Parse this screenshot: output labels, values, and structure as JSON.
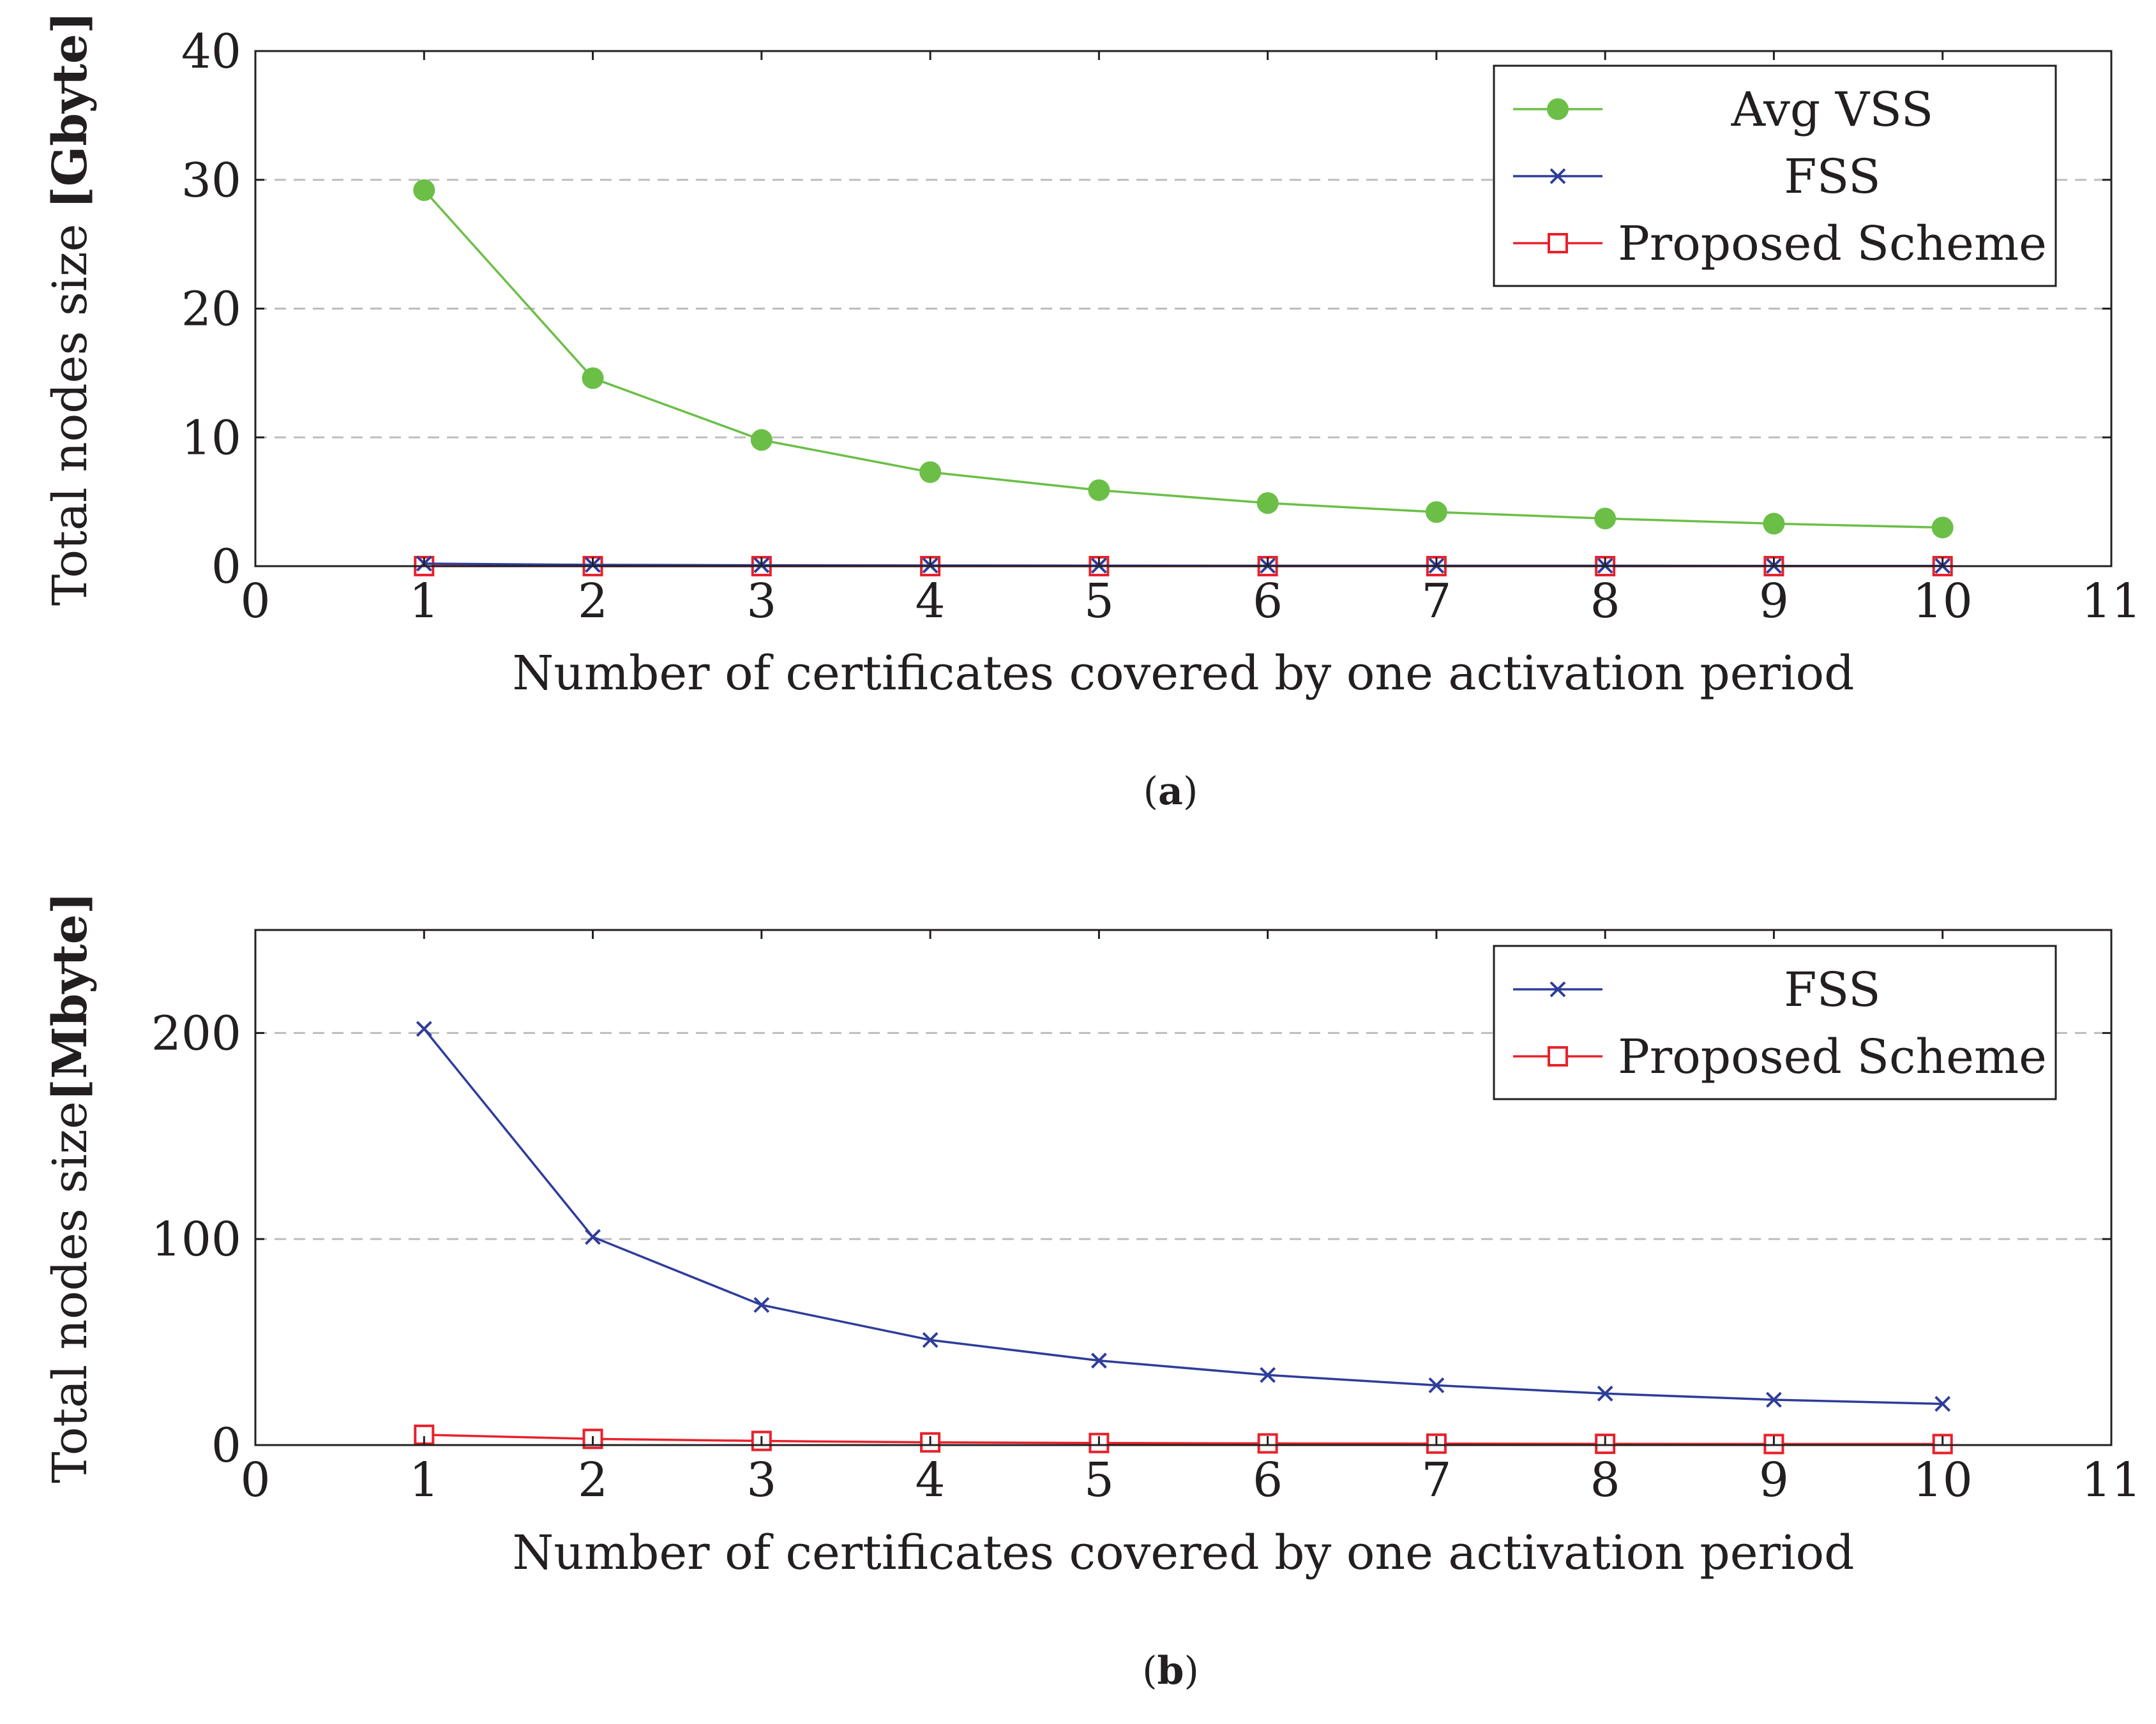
{
  "colors": {
    "avg_vss": "#6bbf47",
    "fss": "#2e3d9a",
    "proposed": "#e8212b"
  },
  "chart_data": [
    {
      "type": "line",
      "caption": "a",
      "xlabel": "Number of certificates covered by one activation period",
      "ylabel_main": "Total nodes size ",
      "ylabel_unit": "[Gbyte]",
      "xlim": [
        0,
        11
      ],
      "ylim": [
        0,
        40
      ],
      "xticks": [
        0,
        1,
        2,
        3,
        4,
        5,
        6,
        7,
        8,
        9,
        10,
        11
      ],
      "yticks": [
        0,
        10,
        20,
        30,
        40
      ],
      "grid": "y-dashed",
      "legend_position": "top-right",
      "x": [
        1,
        2,
        3,
        4,
        5,
        6,
        7,
        8,
        9,
        10
      ],
      "series": [
        {
          "name": "Avg VSS",
          "marker": "circle",
          "color": "#6bbf47",
          "values": [
            29.2,
            14.6,
            9.8,
            7.3,
            5.9,
            4.9,
            4.2,
            3.7,
            3.3,
            3.0
          ]
        },
        {
          "name": "FSS",
          "marker": "x",
          "color": "#2e3d9a",
          "values": [
            0.2,
            0.1,
            0.07,
            0.05,
            0.04,
            0.03,
            0.03,
            0.03,
            0.02,
            0.02
          ]
        },
        {
          "name": "Proposed Scheme",
          "marker": "square",
          "color": "#e8212b",
          "values": [
            0.005,
            0.003,
            0.002,
            0.001,
            0.001,
            0.001,
            0.001,
            0.001,
            0.001,
            0.001
          ]
        }
      ]
    },
    {
      "type": "line",
      "caption": "b",
      "xlabel": "Number of certificates covered by one activation period",
      "ylabel_main": "Total nodes size",
      "ylabel_unit": "[Mbyte]",
      "xlim": [
        0,
        11
      ],
      "ylim": [
        0,
        250
      ],
      "xticks": [
        0,
        1,
        2,
        3,
        4,
        5,
        6,
        7,
        8,
        9,
        10,
        11
      ],
      "yticks": [
        0,
        100,
        200
      ],
      "grid": "y-dashed",
      "legend_position": "top-right",
      "x": [
        1,
        2,
        3,
        4,
        5,
        6,
        7,
        8,
        9,
        10
      ],
      "series": [
        {
          "name": "FSS",
          "marker": "x",
          "color": "#2e3d9a",
          "values": [
            202,
            101,
            68,
            51,
            41,
            34,
            29,
            25,
            22,
            20
          ]
        },
        {
          "name": "Proposed Scheme",
          "marker": "square",
          "color": "#e8212b",
          "values": [
            5,
            3,
            2,
            1.3,
            1,
            0.8,
            0.7,
            0.6,
            0.5,
            0.5
          ]
        }
      ]
    }
  ]
}
